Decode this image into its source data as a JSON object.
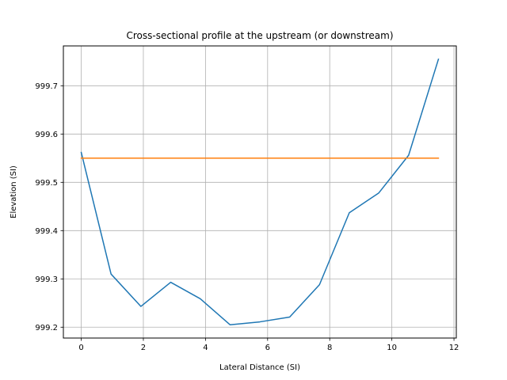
{
  "chart_data": {
    "type": "line",
    "title": "Cross-sectional profile at the upstream (or downstream)",
    "xlabel": "Lateral Distance (SI)",
    "ylabel": "Elevation (SI)",
    "xlim": [
      -0.575,
      12.075
    ],
    "ylim": [
      999.1775,
      999.7825
    ],
    "xticks": [
      0,
      2,
      4,
      6,
      8,
      10,
      12
    ],
    "yticks": [
      999.2,
      999.3,
      999.4,
      999.5,
      999.6,
      999.7
    ],
    "xtick_labels": [
      "0",
      "2",
      "4",
      "6",
      "8",
      "10",
      "12"
    ],
    "ytick_labels": [
      "999.2",
      "999.3",
      "999.4",
      "999.5",
      "999.6",
      "999.7"
    ],
    "grid": true,
    "series": [
      {
        "color": "#1f77b4",
        "x": [
          0,
          0.96,
          1.92,
          2.88,
          3.83,
          4.79,
          5.75,
          6.71,
          7.67,
          8.63,
          9.58,
          10.54,
          11.5
        ],
        "y": [
          999.562,
          999.31,
          999.243,
          999.293,
          999.259,
          999.205,
          999.211,
          999.221,
          999.288,
          999.437,
          999.478,
          999.556,
          999.755
        ]
      },
      {
        "color": "#ff7f0e",
        "x": [
          0,
          11.5
        ],
        "y": [
          999.55,
          999.55
        ]
      }
    ]
  }
}
